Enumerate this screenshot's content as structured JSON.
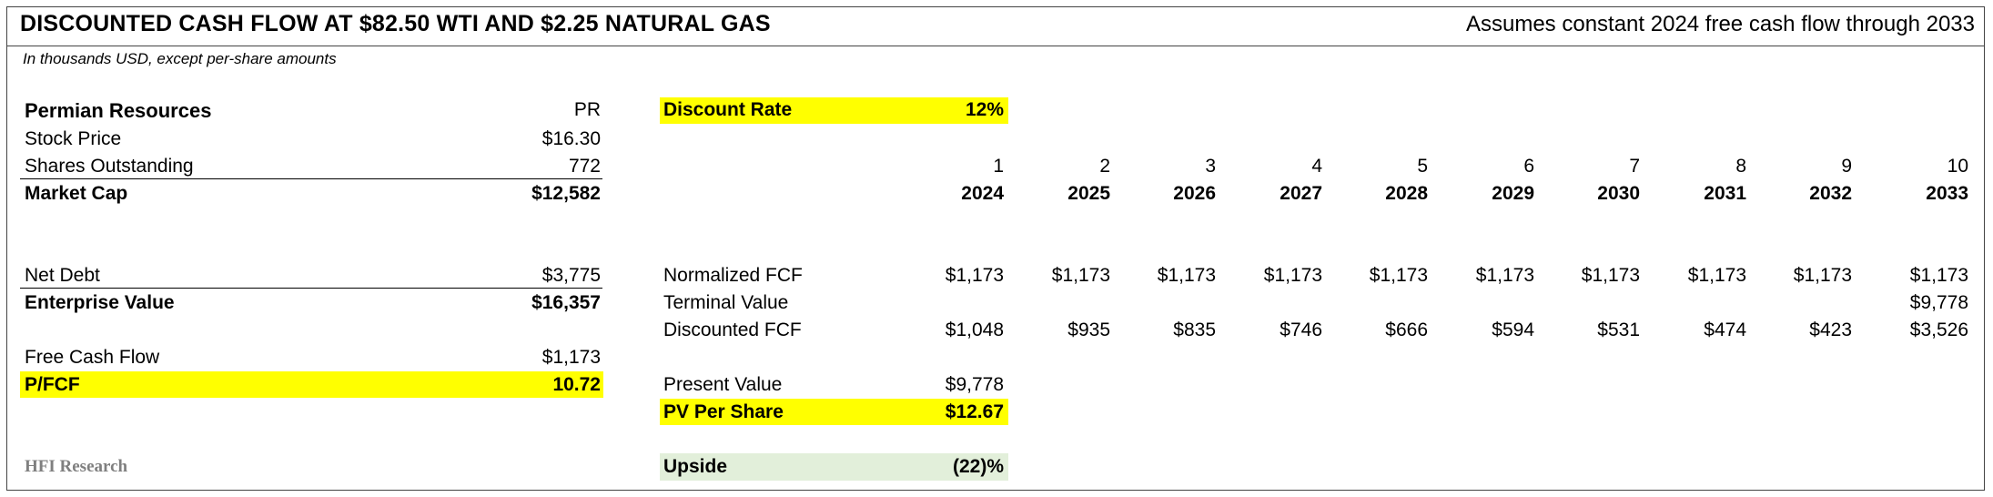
{
  "header": {
    "title": "DISCOUNTED CASH FLOW AT $82.50 WTI AND $2.25 NATURAL GAS",
    "subtitle": "Assumes constant 2024 free cash flow through 2033",
    "units_note": "In thousands USD, except per-share amounts"
  },
  "company": {
    "name": "Permian Resources",
    "ticker": "PR",
    "rows": [
      {
        "label": "Stock Price",
        "value": "$16.30"
      },
      {
        "label": "Shares Outstanding",
        "value": "772"
      },
      {
        "label": "Market Cap",
        "value": "$12,582"
      },
      {
        "label": "Net Debt",
        "value": "$3,775"
      },
      {
        "label": "Enterprise Value",
        "value": "$16,357"
      },
      {
        "label": "Free Cash Flow",
        "value": "$1,173"
      },
      {
        "label": "P/FCF",
        "value": "10.72"
      }
    ]
  },
  "dcf": {
    "discount_rate_label": "Discount Rate",
    "discount_rate_value": "12%",
    "periods": [
      "1",
      "2",
      "3",
      "4",
      "5",
      "6",
      "7",
      "8",
      "9",
      "10"
    ],
    "years": [
      "2024",
      "2025",
      "2026",
      "2027",
      "2028",
      "2029",
      "2030",
      "2031",
      "2032",
      "2033"
    ],
    "normalized_fcf_label": "Normalized FCF",
    "normalized_fcf": [
      "$1,173",
      "$1,173",
      "$1,173",
      "$1,173",
      "$1,173",
      "$1,173",
      "$1,173",
      "$1,173",
      "$1,173",
      "$1,173"
    ],
    "terminal_value_label": "Terminal Value",
    "terminal_value": "$9,778",
    "discounted_fcf_label": "Discounted FCF",
    "discounted_fcf": [
      "$1,048",
      "$935",
      "$835",
      "$746",
      "$666",
      "$594",
      "$531",
      "$474",
      "$423",
      "$3,526"
    ],
    "present_value_label": "Present Value",
    "present_value": "$9,778",
    "pv_per_share_label": "PV Per Share",
    "pv_per_share": "$12.67",
    "upside_label": "Upside",
    "upside": "(22)%"
  },
  "colors": {
    "highlight": "#ffff00",
    "upside_fill": "#e2efda",
    "brand_gray": "#7f7f7f"
  },
  "footer": {
    "brand": "HFI Research"
  }
}
